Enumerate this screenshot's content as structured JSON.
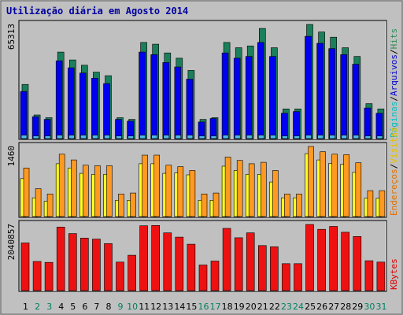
{
  "chart_data": {
    "type": "bar",
    "title": "Utilização diária em Agosto 2014",
    "categories": [
      "1",
      "2",
      "3",
      "4",
      "5",
      "6",
      "7",
      "8",
      "9",
      "10",
      "11",
      "12",
      "13",
      "14",
      "15",
      "16",
      "17",
      "18",
      "19",
      "20",
      "21",
      "22",
      "23",
      "24",
      "25",
      "26",
      "27",
      "28",
      "29",
      "30",
      "31"
    ],
    "weekend_days": [
      "2",
      "3",
      "9",
      "10",
      "16",
      "17",
      "23",
      "24",
      "30",
      "31"
    ],
    "panels": [
      {
        "name": "hits-pages-files",
        "ymax_label": "65313",
        "ymax": 65313,
        "legend": [
          {
            "text": "Hits",
            "color": "#2e8b57"
          },
          {
            "text": "Arquivos",
            "color": "#0000d0"
          },
          {
            "text": "Páginas",
            "color": "#00c0c0"
          }
        ],
        "series": [
          {
            "name": "Hits",
            "color": "#1a7f5a",
            "values": [
              31000,
              13500,
              12000,
              49500,
              45000,
              42000,
              38000,
              36000,
              12000,
              11000,
              55000,
              54000,
              49000,
              46000,
              39000,
              11000,
              12000,
              55000,
              52000,
              53000,
              63000,
              52000,
              17000,
              17000,
              65313,
              61000,
              58000,
              52000,
              47000,
              20000,
              17000
            ]
          },
          {
            "name": "Arquivos",
            "color": "#0000ee",
            "values": [
              27000,
              12500,
              11000,
              44500,
              40500,
              37500,
              34500,
              31500,
              11000,
              10000,
              49500,
              48000,
              43500,
              41000,
              34000,
              9500,
              11500,
              49000,
              46000,
              47000,
              55000,
              47000,
              14500,
              15500,
              58500,
              54500,
              51500,
              48000,
              42500,
              17500,
              14500
            ]
          },
          {
            "name": "Páginas",
            "color": "#4fb8e8",
            "values": [
              2000,
              1500,
              1500,
              2000,
              2000,
              2000,
              2000,
              2000,
              1500,
              1500,
              2000,
              2000,
              2000,
              2000,
              2000,
              1500,
              1500,
              2000,
              2000,
              2000,
              2000,
              2000,
              1500,
              1500,
              2000,
              2000,
              2000,
              2000,
              2000,
              1500,
              1500
            ]
          }
        ]
      },
      {
        "name": "visits-sites",
        "ymax_label": "1460",
        "ymax": 1460,
        "legend": [
          {
            "text": "Visitas",
            "color": "#e6c000"
          },
          {
            "text": "Endereços",
            "color": "#e07000"
          }
        ],
        "series": [
          {
            "name": "Visitas",
            "color": "#ffff22",
            "values": [
              790,
              390,
              320,
              1100,
              1010,
              900,
              880,
              880,
              340,
              340,
              1100,
              1100,
              900,
              910,
              870,
              340,
              340,
              1050,
              960,
              880,
              880,
              720,
              390,
              390,
              1310,
              1180,
              1110,
              1090,
              920,
              380,
              380
            ]
          },
          {
            "name": "Endereços",
            "color": "#ff9922",
            "values": [
              1010,
              580,
              470,
              1300,
              1180,
              1070,
              1060,
              1060,
              470,
              490,
              1280,
              1280,
              1070,
              1040,
              960,
              470,
              490,
              1240,
              1170,
              1100,
              1130,
              960,
              470,
              470,
              1460,
              1350,
              1300,
              1290,
              1120,
              540,
              540
            ]
          }
        ]
      },
      {
        "name": "kbytes",
        "ymax_label": "2040857",
        "ymax": 2040857,
        "legend": [
          {
            "text": "KBytes",
            "color": "#dd0000"
          }
        ],
        "series": [
          {
            "name": "KBytes",
            "color": "#ee1111",
            "values": [
              1470000,
              900000,
              870000,
              1960000,
              1760000,
              1620000,
              1590000,
              1450000,
              880000,
              1090000,
              2000000,
              2010000,
              1780000,
              1650000,
              1430000,
              790000,
              910000,
              1920000,
              1630000,
              1780000,
              1390000,
              1350000,
              830000,
              830000,
              2040857,
              1890000,
              1980000,
              1800000,
              1670000,
              920000,
              880000
            ]
          }
        ]
      }
    ]
  }
}
